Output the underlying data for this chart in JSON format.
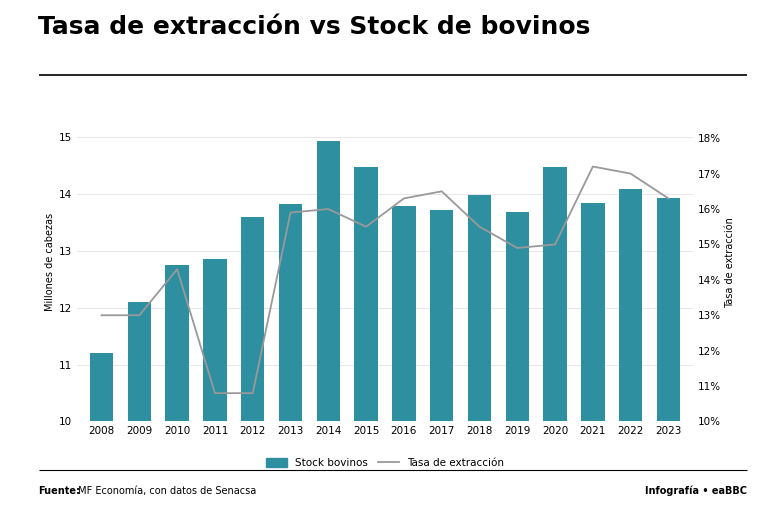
{
  "title": "Tasa de extracción vs Stock de bovinos",
  "years": [
    2008,
    2009,
    2010,
    2011,
    2012,
    2013,
    2014,
    2015,
    2016,
    2017,
    2018,
    2019,
    2020,
    2021,
    2022,
    2023
  ],
  "stock": [
    11.2,
    12.1,
    12.75,
    12.85,
    13.6,
    13.82,
    14.92,
    14.48,
    13.78,
    13.72,
    13.98,
    13.68,
    14.48,
    13.84,
    14.08,
    13.93
  ],
  "tasa": [
    13.0,
    13.0,
    14.3,
    10.8,
    10.8,
    15.9,
    16.0,
    15.5,
    16.3,
    16.5,
    15.5,
    14.9,
    15.0,
    17.2,
    17.0,
    16.3
  ],
  "bar_color": "#2e8fa0",
  "line_color": "#999999",
  "background_color": "#ffffff",
  "ylabel_left": "Millones de cabezas",
  "ylabel_right": "Tasa de extracción",
  "ylim_left": [
    10,
    15.6
  ],
  "ylim_right": [
    10,
    19.0
  ],
  "yticks_left": [
    10,
    11,
    12,
    13,
    14,
    15
  ],
  "ytick_labels_left": [
    "10",
    "11",
    "12",
    "13",
    "14",
    "15"
  ],
  "yticks_right": [
    10,
    11,
    12,
    13,
    14,
    15,
    16,
    17,
    18
  ],
  "ytick_labels_right": [
    "10%",
    "11%",
    "12%",
    "13%",
    "14%",
    "15%",
    "16%",
    "17%",
    "18%"
  ],
  "legend_stock": "Stock bovinos",
  "legend_tasa": "Tasa de extracción",
  "source_text_bold": "Fuente:",
  "source_text_normal": " MF Economía, con datos de Senacsa",
  "brand_text": "Infografía • eaBBC",
  "title_fontsize": 18,
  "axis_fontsize": 7.5,
  "ylabel_fontsize": 7,
  "legend_fontsize": 7.5
}
